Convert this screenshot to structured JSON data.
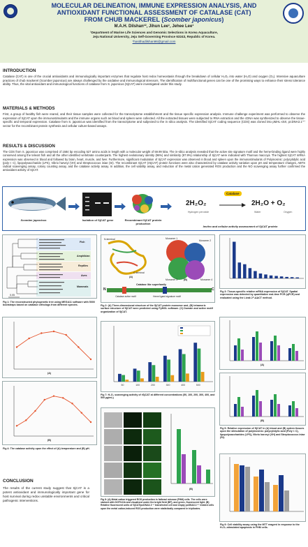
{
  "header": {
    "title_line1": "MOLECULAR DELINEATION, IMMUNE EXPRESSION ANALYSIS, AND",
    "title_line2": "ANTIOXIDANT FUNCTIONAL ASSESSMENT OF CATALASE (CAT)",
    "title_line3_prefix": "FROM CHUB MACKEREL (",
    "title_line3_species": "Scomber japonicus",
    "title_line3_suffix": ")",
    "authors": "M.A.H. Dilshan¹², Jihun Lee¹, Jehee Lee¹",
    "affiliation1": "¹Department of Marine Life Sciences and Genomic Selections in Korea Aquaculture,",
    "affiliation2": "Jeju National University, Jeju Self-Governing Province 63243, Republic of Korea.",
    "email": "*hasithadilshan96@gmail.com"
  },
  "sections": {
    "intro_head": "INTRODUCTION",
    "intro_text": "Catalase (CAT) is one of the crucial antioxidants and immunologically important enzymes that regulate host redox homeostasis through the breakdown of cellular H₂O₂ into water (H₂O) and oxygen (O₂). Intensive aquaculture practices of chub mackerel (Scomber japonicus) are always challenged by the oxidative and immunological stressors. The identification of multifunctional genes can be one of the promising ways to enhance their stress tolerance ability. Thus, the vital antioxidant and immunological functions of catalase from S. japonicus (SjCAT) were investigated under this study.",
    "methods_head": "MATERIALS & METHODS",
    "methods_text": "First, a group of healthy fish were reared, and their tissue samples were collected for the transcriptome establishment and the tissue specific expression analysis. Immune challenge experiment was performed to observe the expression of SjCAT upon the immunostimulants and the immune organs such as blood and spleen were collected. All the extracted tissues were subjected to RNA extraction and the cDNA was synthesized to observe the tissue-specific and temporal expression. Catalase from S. japonicus was identified from the transcriptome and subjected to the in silico analysis. The identified SjCAT coding sequence (CDS) was cloned into pMAL-c5X, pcDNA3.1⁽⁺⁾ vector for the recombinant protein synthesis and cellular culture-based assays.",
    "results_head": "RESULTS & DISCUSSION",
    "results_text": "The CDS from S. japonicus was comprised of 1584 bp encoding 527 amino acids in length with a molecular weight of 59.99 kDa. The in-silico analysis revealed that the active site signature motif and the heme-binding ligand were highly conserved among the teleost fish and all the other identified vertebrate counterparts. The highest evolutionary identity (96%) and similarity (97.9%) relationship of SjCAT were indicated with Thunnus maccoyii. The highest SjCAT mRNA expression was observed in blood and followed by brain, heart, muscle, and liver. Furthermore, significant modulation of SjCAT expression was observed in blood and spleen upon the immunostimulants of Polyinosinic: polycytidylic acid (poly I: C), lipopolysaccharide (LPS), Vibrio harveyi (VH) and Streptococcus iniae (SI). The recombinant SjCAT (rSjCAT) protein functions were also characterized by catalase activity variation upon pH and temperature changes, ABTS radical scavenging assay, colony counting assay, and the catalase activity assay. In addition, the cell viability assay, and reduction of the metal cation generated ROS production and the NO scavenging assay further confirmed the antioxidant activity of SjCAT.",
    "concl_head": "CONCLUSION",
    "concl_text": "The results of the current study suggest that SjCAT is a potent antioxidant and immunologically important gene for host survival during redox unstable environments and critical pathogenic interventions."
  },
  "strip": {
    "fish_label": "Scomber japonicus",
    "gene_label": "Isolation of SjCAT gene",
    "protein_label": "Recombinant SjCAT protein production",
    "assay_label": "Invitro and cellular activity assessment of SjCAT protein",
    "equation_left": "2H₂O₂",
    "equation_right": "2H₂O + O₂",
    "catalase_badge": "Catalase",
    "sub_hydrogen": "Hydrogen peroxide",
    "sub_water": "Water",
    "sub_oxygen": "Oxygen"
  },
  "panels": {
    "fig1_caption": "Fig 1: The reconstructed phylogenetic tree using MEGA11 software with 5000 bootstraps based on catalase orthologs from different species.",
    "fig1_scale": "0.05",
    "fig1_groups": [
      "Fish",
      "Amphibian",
      "Reptiles",
      "Aves",
      "Mammals"
    ],
    "fig2_caption": "Fig 2: (A) Three-dimensional structure of the SjCAT protein monomer and, (B) tetrameric surface structure of SjCAT were predicted using PyMOL software. (C) Domain and active motif organization of SjCAT.",
    "fig2_labels": [
      "Monomer 1",
      "Monomer 2",
      "Monomer 3",
      "Monomer 4",
      "N-terminal",
      "C-terminal",
      "(A)",
      "(B)"
    ],
    "fig2_domain_title": "Catalase like superfamily",
    "fig2_domain_n": "N",
    "fig2_domain_c": "C",
    "fig2_motif_left": "Catalase active motif",
    "fig2_motif_right": "Heme ligand signature motif",
    "fig3_caption": "Fig 3: Tissue-specific relative mRNA expression of SjCAT. Spatial expression was detected by quantitative real-time PCR (qPCR) and evaluated using the Livak 2^-ΔΔCT method.",
    "fig4_caption": "Fig 4: The catalase activity upon the effect of (A) temperature and (B) pH.",
    "fig4_label_a": "(A)",
    "fig4_label_b": "(B)",
    "fig5_caption": "Fig 5: Relative expression of SjCAT in (A) blood and (B) spleen tissues upon the stimulation of polyinosinic: polycytidylic acid (Poly I: C), lipopolysaccharides (LPS), Vibrio harveyi (VH) and Streptococcus iniae (SI).",
    "fig5_label_a": "(A)",
    "fig5_label_b": "(B)",
    "fig7_caption": "Fig 7: H₂O₂ scavenging activity of rSjCAT at different concentrations (50, 100, 200, 300, 400, and 500 µg/mL)",
    "fig8_caption": "Fig 8: (A) Metal cation triggered ROS production in fathead minnow (FHM) cells. The cells were stained with DCFH-DA and visualized under the bright field (BF), and green, fluorescent light. (B) Relative fluorescent units of SjCAT/pcDNA3.1⁽⁺⁾ transfected cell and empty pcDNA3.1⁽⁺⁾ treated cells upon the metal cation-induced ROS production were statistically compared in triplicates.",
    "fig9_caption": "Fig 9: Cell viability assay using the MTT reagent in response to the H₂O₂-stimulated apoptosis in FHM cells.",
    "fig8_label_a": "(A)",
    "fig8_label_b": "(B)"
  },
  "chart_data": [
    {
      "type": "line",
      "title": "",
      "xlabel": "Temperature",
      "ylabel": "Relative activity",
      "x": [
        20,
        25,
        30,
        35,
        40,
        45,
        50
      ],
      "series": [
        {
          "values": [
            55,
            80,
            95,
            100,
            90,
            55,
            20
          ]
        }
      ],
      "ylim": [
        0,
        120
      ]
    },
    {
      "type": "line",
      "title": "",
      "xlabel": "pH",
      "ylabel": "Relative activity",
      "x": [
        3,
        4,
        5,
        6,
        7,
        8,
        9,
        10,
        11
      ],
      "series": [
        {
          "values": [
            20,
            35,
            60,
            90,
            100,
            95,
            80,
            55,
            30
          ]
        }
      ],
      "ylim": [
        0,
        120
      ]
    },
    {
      "type": "bar",
      "title": "",
      "xlabel": "",
      "ylabel": "Relative mRNA expression",
      "values": [
        15,
        6.5,
        5.8,
        4.2,
        3.0,
        2.0,
        1.6,
        1.2,
        1.0,
        0.8,
        0.6,
        0.5,
        0.4
      ],
      "ylim": [
        0,
        16
      ]
    },
    {
      "type": "bar",
      "title": "",
      "xlabel": "",
      "ylabel": "H₂O₂ scavenging activity (%)",
      "categories": [
        "50",
        "100",
        "200",
        "300",
        "400",
        "500"
      ],
      "values": [
        18,
        30,
        45,
        60,
        75,
        90
      ],
      "ylim": [
        0,
        100
      ]
    }
  ]
}
